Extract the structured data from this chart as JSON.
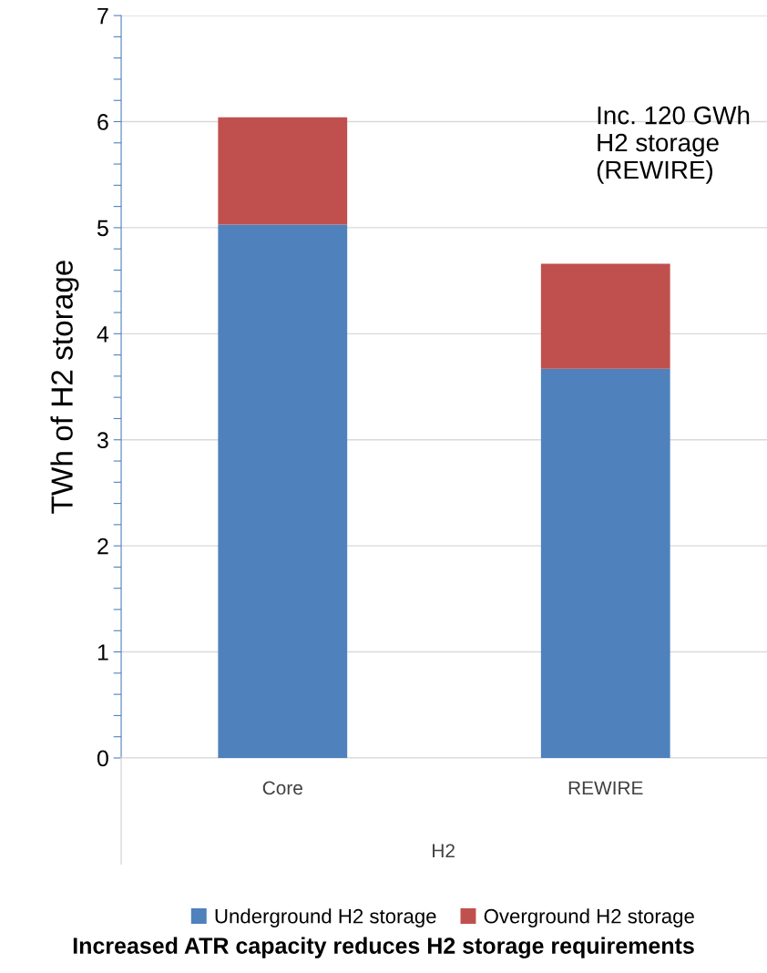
{
  "chart_data": {
    "type": "bar",
    "stacked": true,
    "title": "Increased ATR capacity reduces H2 storage requirements",
    "categories": [
      "Core",
      "REWIRE"
    ],
    "series": [
      {
        "name": "Underground H2 storage",
        "color": "#4f81bd",
        "values": [
          5.03,
          3.67
        ]
      },
      {
        "name": "Overground H2 storage",
        "color": "#c0504d",
        "values": [
          1.01,
          0.99
        ]
      }
    ],
    "xlabel": "H2",
    "ylabel": "TWh of H2 storage",
    "ylim": [
      0,
      7
    ],
    "yticks": [
      0,
      {
        "value": 0.2,
        "label": null
      },
      {
        "value": 0.4,
        "label": null
      },
      {
        "value": 0.6,
        "label": null
      },
      {
        "value": 0.8,
        "label": null
      },
      1,
      {
        "value": 1.2,
        "label": null
      },
      {
        "value": 1.4,
        "label": null
      },
      {
        "value": 1.6,
        "label": null
      },
      {
        "value": 1.8,
        "label": null
      },
      2,
      {
        "value": 2.2,
        "label": null
      },
      {
        "value": 2.4,
        "label": null
      },
      {
        "value": 2.6,
        "label": null
      },
      {
        "value": 2.8,
        "label": null
      },
      3,
      {
        "value": 3.2,
        "label": null
      },
      {
        "value": 3.4,
        "label": null
      },
      {
        "value": 3.6,
        "label": null
      },
      {
        "value": 3.8,
        "label": null
      },
      4,
      {
        "value": 4.2,
        "label": null
      },
      {
        "value": 4.4,
        "label": null
      },
      {
        "value": 4.6,
        "label": null
      },
      {
        "value": 4.8,
        "label": null
      },
      5,
      {
        "value": 5.2,
        "label": null
      },
      {
        "value": 5.4,
        "label": null
      },
      {
        "value": 5.6,
        "label": null
      },
      {
        "value": 5.8,
        "label": null
      },
      6,
      {
        "value": 6.2,
        "label": null
      },
      {
        "value": 6.4,
        "label": null
      },
      {
        "value": 6.6,
        "label": null
      },
      {
        "value": 6.8,
        "label": null
      },
      7
    ],
    "grid": "y",
    "legend": "bottom",
    "annotations": [
      "Inc. 120 GWh\nH2 storage\n(REWIRE)"
    ]
  }
}
